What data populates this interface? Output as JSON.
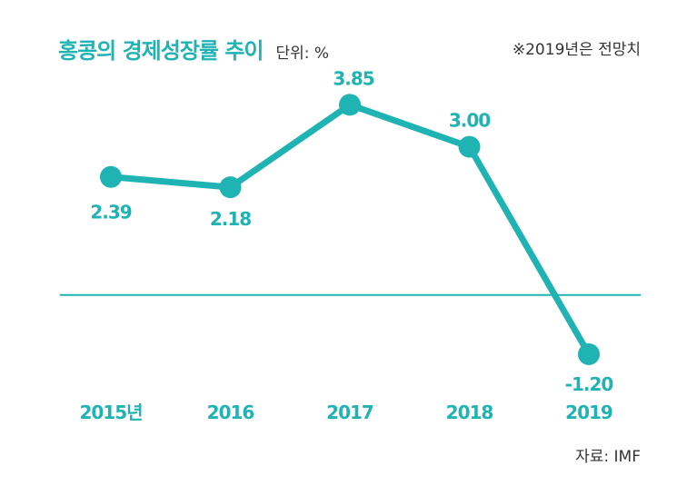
{
  "header": {
    "title": "홍콩의 경제성장률 추이",
    "unit": "단위: %",
    "note": "※2019년은 전망치"
  },
  "footer": {
    "source": "자료: IMF"
  },
  "colors": {
    "accent": "#1fb3b3",
    "text": "#333333"
  },
  "chart_data": {
    "type": "line",
    "title": "홍콩의 경제성장률 추이",
    "categories": [
      "2015년",
      "2016",
      "2017",
      "2018",
      "2019"
    ],
    "series": [
      {
        "values": [
          2.39,
          2.18,
          3.85,
          3.0,
          -1.2
        ],
        "labels": [
          "2.39",
          "2.18",
          "3.85",
          "3.00",
          "-1.20"
        ]
      }
    ],
    "ylim": [
      -1.9,
      4.5
    ],
    "baseline": 0,
    "grid": false,
    "legend": "none"
  }
}
